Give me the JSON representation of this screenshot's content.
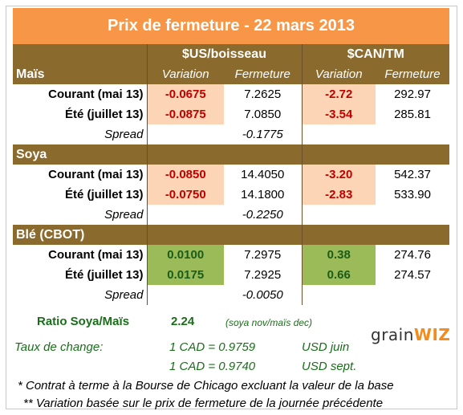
{
  "title": "Prix de fermeture - 22 mars 2013",
  "headers": {
    "usd": "$US/boisseau",
    "cad": "$CAN/TM",
    "variation": "Variation",
    "fermeture": "Fermeture"
  },
  "sections": [
    {
      "name": "Maïs",
      "rows": [
        {
          "label": "Courant (mai 13)",
          "usd_var": "-0.0675",
          "usd_close": "7.2625",
          "cad_var": "-2.72",
          "cad_close": "292.97"
        },
        {
          "label": "Été (juillet 13)",
          "usd_var": "-0.0875",
          "usd_close": "7.0850",
          "cad_var": "-3.54",
          "cad_close": "285.81"
        }
      ],
      "spread_label": "Spread",
      "spread_value": "-0.1775"
    },
    {
      "name": "Soya",
      "rows": [
        {
          "label": "Courant (mai 13)",
          "usd_var": "-0.0850",
          "usd_close": "14.4050",
          "cad_var": "-3.20",
          "cad_close": "542.37"
        },
        {
          "label": "Été (juillet 13)",
          "usd_var": "-0.0750",
          "usd_close": "14.1800",
          "cad_var": "-2.83",
          "cad_close": "533.90"
        }
      ],
      "spread_label": "Spread",
      "spread_value": "-0.2250"
    },
    {
      "name": "Blé (CBOT)",
      "rows": [
        {
          "label": "Courant (mai 13)",
          "usd_var": "0.0100",
          "usd_close": "7.2975",
          "cad_var": "0.38",
          "cad_close": "274.76"
        },
        {
          "label": "Été (juillet 13)",
          "usd_var": "0.0175",
          "usd_close": "7.2925",
          "cad_var": "0.66",
          "cad_close": "274.57"
        }
      ],
      "spread_label": "Spread",
      "spread_value": "-0.0050"
    }
  ],
  "ratio": {
    "label": "Ratio Soya/Maïs",
    "value": "2.24",
    "note": "(soya nov/maïs dec)"
  },
  "exchange": {
    "label": "Taux de change:",
    "rate1": "1 CAD =  0.9759",
    "unit1": "USD juin",
    "rate2": "1 CAD =  0.9740",
    "unit2": "USD sept."
  },
  "footnotes": {
    "n1": "* Contrat à terme à la Bourse de Chicago excluant la valeur de la base",
    "n2": "** Variation basée sur le prix de fermeture de la journée précédente"
  },
  "logo": {
    "part1": "grain",
    "part2": "WIZ"
  },
  "colors": {
    "title_bg": "#f79646",
    "section_bg": "#8b6a2e",
    "neg_bg": "#fbd5b5",
    "pos_bg": "#9bbb59",
    "neg_text": "#c00000",
    "pos_text": "#1a5c1a"
  }
}
